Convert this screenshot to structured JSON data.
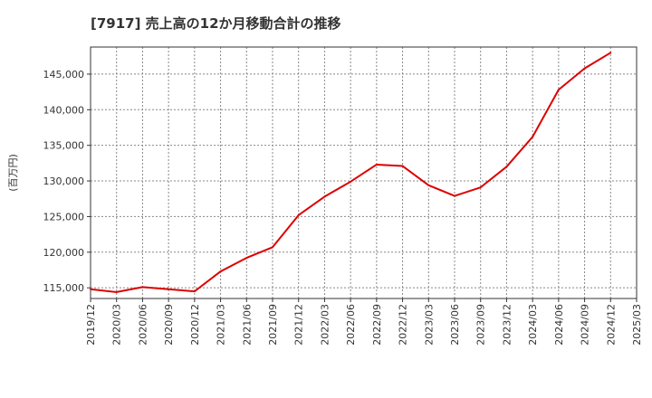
{
  "chart_data": {
    "type": "line",
    "title": "[7917]  売上高の12か月移動合計の推移",
    "ylabel": "(百万円)",
    "xlabel": "",
    "ylim": [
      113500,
      148800
    ],
    "y_ticks": [
      115000,
      120000,
      125000,
      130000,
      135000,
      140000,
      145000
    ],
    "y_tick_labels": [
      "115,000",
      "120,000",
      "125,000",
      "130,000",
      "135,000",
      "140,000",
      "145,000"
    ],
    "x_tick_labels": [
      "2019/12",
      "2020/03",
      "2020/06",
      "2020/09",
      "2020/12",
      "2021/03",
      "2021/06",
      "2021/09",
      "2021/12",
      "2022/03",
      "2022/06",
      "2022/09",
      "2022/12",
      "2023/03",
      "2023/06",
      "2023/09",
      "2023/12",
      "2024/03",
      "2024/06",
      "2024/09",
      "2024/12",
      "2025/03"
    ],
    "grid": true,
    "line_color": "#dd0000",
    "series": [
      {
        "name": "売上高の12か月移動合計",
        "x": [
          "2019/12",
          "2020/03",
          "2020/06",
          "2020/09",
          "2020/12",
          "2021/03",
          "2021/06",
          "2021/09",
          "2021/12",
          "2022/03",
          "2022/06",
          "2022/09",
          "2022/12",
          "2023/03",
          "2023/06",
          "2023/09",
          "2023/12",
          "2024/03",
          "2024/06",
          "2024/09",
          "2024/12"
        ],
        "values": [
          114800,
          114400,
          115100,
          114800,
          114500,
          117300,
          119200,
          120700,
          125200,
          127800,
          129900,
          132300,
          132100,
          129400,
          127900,
          129100,
          132000,
          136200,
          142800,
          145800,
          148000
        ]
      }
    ]
  }
}
